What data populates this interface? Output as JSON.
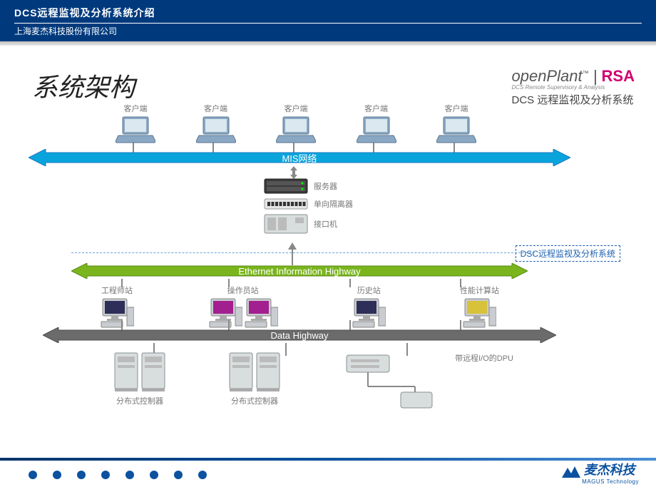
{
  "header": {
    "title": "DCS远程监视及分析系统介绍",
    "subtitle": "上海麦杰科技股份有限公司",
    "bg_color": "#003a7d"
  },
  "page_title": "系统架构",
  "logo": {
    "brand": "openPlant",
    "tm": "™",
    "sep": "|",
    "suffix": "RSA",
    "tagline": "DCS Remote Supervisory & Analysis",
    "subtitle": "DCS 远程监视及分析系统",
    "suffix_color": "#d0006f"
  },
  "diagram": {
    "clients": {
      "label": "客户端",
      "count": 5,
      "laptop_body_color": "#8aa8c4",
      "laptop_screen_color": "#dbe8ef"
    },
    "mis_bar": {
      "text": "MIS网络",
      "fill": "#0aa4dc"
    },
    "server_stack": [
      {
        "key": "server",
        "label": "服务器"
      },
      {
        "key": "isolator",
        "label": "单向隔离器"
      },
      {
        "key": "interface",
        "label": "接口机"
      }
    ],
    "dsc_caption": "DSC远程监视及分析系统",
    "eth_bar": {
      "text": "Ethernet Information Highway",
      "fill": "#7ab51d"
    },
    "stations": [
      {
        "label": "工程师站",
        "screen": "#2e2e58",
        "count": 1
      },
      {
        "label": "操作员站",
        "screen": "#a31e8f",
        "count": 2
      },
      {
        "label": "历史站",
        "screen": "#2e2e58",
        "count": 1
      },
      {
        "label": "性能计算站",
        "screen": "#d8c23a",
        "count": 1
      }
    ],
    "data_bar": {
      "text": "Data Highway",
      "fill": "#6b6b6b"
    },
    "controllers": [
      {
        "label": "分布式控制器"
      },
      {
        "label": "分布式控制器"
      }
    ],
    "dpu_label": "带远程I/O的DPU",
    "device_fill": "#d8ddde",
    "device_stroke": "#8a8f91"
  },
  "footer": {
    "dot_count": 8,
    "dot_color": "#0b52a0",
    "company_cn": "麦杰科技",
    "company_en": "MAGUS Technology"
  }
}
